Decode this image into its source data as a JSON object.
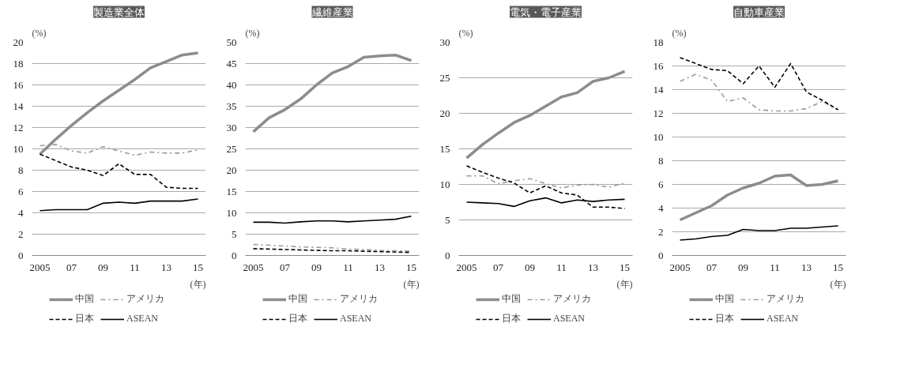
{
  "chart_data": [
    {
      "type": "line",
      "title": "製造業全体",
      "ylabel": "(%)",
      "xlabel": "(年)",
      "categories": [
        "2005",
        null,
        "07",
        null,
        "09",
        null,
        "11",
        null,
        "13",
        null,
        "15"
      ],
      "ylim": [
        0,
        20
      ],
      "yticks": [
        0,
        2,
        4,
        6,
        8,
        10,
        12,
        14,
        16,
        18,
        20
      ],
      "grid": "y",
      "legend": "bottom",
      "series": [
        {
          "name": "中国",
          "color": "#8c8c8c",
          "line_style": "solid",
          "values": [
            9.5,
            10.9,
            12.2,
            13.4,
            14.5,
            15.5,
            16.5,
            17.6,
            18.2,
            18.8,
            19.0
          ]
        },
        {
          "name": "アメリカ",
          "color": "#9a9a9a",
          "line_style": "dashdot",
          "values": [
            10.3,
            10.4,
            9.8,
            9.6,
            10.2,
            9.8,
            9.4,
            9.7,
            9.6,
            9.6,
            9.9
          ]
        },
        {
          "name": "日本",
          "color": "#000000",
          "line_style": "dashed",
          "values": [
            9.5,
            8.9,
            8.3,
            8.0,
            7.5,
            8.6,
            7.6,
            7.6,
            6.4,
            6.3,
            6.3
          ]
        },
        {
          "name": "ASEAN",
          "color": "#000000",
          "line_style": "solid",
          "values": [
            4.2,
            4.3,
            4.3,
            4.3,
            4.9,
            5.0,
            4.9,
            5.1,
            5.1,
            5.1,
            5.3
          ]
        }
      ]
    },
    {
      "type": "line",
      "title": "繊維産業",
      "ylabel": "(%)",
      "xlabel": "(年)",
      "categories": [
        "2005",
        null,
        "07",
        null,
        "09",
        null,
        "11",
        null,
        "13",
        null,
        "15"
      ],
      "ylim": [
        0,
        50
      ],
      "yticks": [
        0,
        5,
        10,
        15,
        20,
        25,
        30,
        35,
        40,
        45,
        50
      ],
      "grid": "y",
      "legend": "bottom",
      "series": [
        {
          "name": "中国",
          "color": "#8c8c8c",
          "line_style": "solid",
          "values": [
            29.0,
            32.3,
            34.2,
            36.7,
            40.0,
            42.8,
            44.3,
            46.5,
            46.8,
            47.0,
            45.7
          ]
        },
        {
          "name": "アメリカ",
          "color": "#9a9a9a",
          "line_style": "dashdot",
          "values": [
            2.6,
            2.4,
            2.2,
            2.0,
            1.9,
            1.8,
            1.5,
            1.4,
            1.2,
            1.1,
            1.0
          ]
        },
        {
          "name": "日本",
          "color": "#000000",
          "line_style": "dashed",
          "values": [
            1.6,
            1.5,
            1.4,
            1.3,
            1.2,
            1.1,
            1.1,
            1.0,
            0.9,
            0.8,
            0.7
          ]
        },
        {
          "name": "ASEAN",
          "color": "#000000",
          "line_style": "solid",
          "values": [
            7.8,
            7.8,
            7.6,
            7.9,
            8.1,
            8.1,
            7.9,
            8.1,
            8.3,
            8.5,
            9.2
          ]
        }
      ]
    },
    {
      "type": "line",
      "title": "電気・電子産業",
      "ylabel": "(%)",
      "xlabel": "(年)",
      "categories": [
        "2005",
        null,
        "07",
        null,
        "09",
        null,
        "11",
        null,
        "13",
        null,
        "15"
      ],
      "ylim": [
        0,
        30
      ],
      "yticks": [
        0,
        5,
        10,
        15,
        20,
        25,
        30
      ],
      "grid": "y",
      "legend": "bottom",
      "series": [
        {
          "name": "中国",
          "color": "#8c8c8c",
          "line_style": "solid",
          "values": [
            13.7,
            15.6,
            17.2,
            18.7,
            19.7,
            21.0,
            22.3,
            22.9,
            24.5,
            25.0,
            25.9
          ]
        },
        {
          "name": "アメリカ",
          "color": "#9a9a9a",
          "line_style": "dashdot",
          "values": [
            11.2,
            11.2,
            10.1,
            10.5,
            10.8,
            10.1,
            9.5,
            9.9,
            10.0,
            9.6,
            10.2
          ]
        },
        {
          "name": "日本",
          "color": "#000000",
          "line_style": "dashed",
          "values": [
            12.6,
            11.7,
            10.9,
            10.2,
            8.8,
            9.8,
            8.8,
            8.5,
            6.8,
            6.8,
            6.6
          ]
        },
        {
          "name": "ASEAN",
          "color": "#000000",
          "line_style": "solid",
          "values": [
            7.5,
            7.4,
            7.3,
            6.9,
            7.7,
            8.1,
            7.4,
            7.8,
            7.6,
            7.8,
            7.9
          ]
        }
      ]
    },
    {
      "type": "line",
      "title": "自動車産業",
      "ylabel": "(%)",
      "xlabel": "(年)",
      "categories": [
        "2005",
        null,
        "07",
        null,
        "09",
        null,
        "11",
        null,
        "13",
        null,
        "15"
      ],
      "ylim": [
        0,
        18
      ],
      "yticks": [
        0,
        2,
        4,
        6,
        8,
        10,
        12,
        14,
        16,
        18
      ],
      "grid": "y",
      "legend": "bottom",
      "series": [
        {
          "name": "中国",
          "color": "#8c8c8c",
          "line_style": "solid",
          "values": [
            3.0,
            3.6,
            4.2,
            5.1,
            5.7,
            6.1,
            6.7,
            6.8,
            5.9,
            6.0,
            6.3
          ]
        },
        {
          "name": "アメリカ",
          "color": "#9a9a9a",
          "line_style": "dashdot",
          "values": [
            14.7,
            15.3,
            14.8,
            13.0,
            13.3,
            12.3,
            12.2,
            12.2,
            12.4,
            13.0,
            12.3
          ]
        },
        {
          "name": "日本",
          "color": "#000000",
          "line_style": "dashed",
          "values": [
            16.7,
            16.2,
            15.7,
            15.6,
            14.5,
            16.0,
            14.2,
            16.2,
            13.8,
            13.1,
            12.3
          ]
        },
        {
          "name": "ASEAN",
          "color": "#000000",
          "line_style": "solid",
          "values": [
            1.3,
            1.4,
            1.6,
            1.7,
            2.2,
            2.1,
            2.1,
            2.3,
            2.3,
            2.4,
            2.5
          ]
        }
      ]
    }
  ]
}
